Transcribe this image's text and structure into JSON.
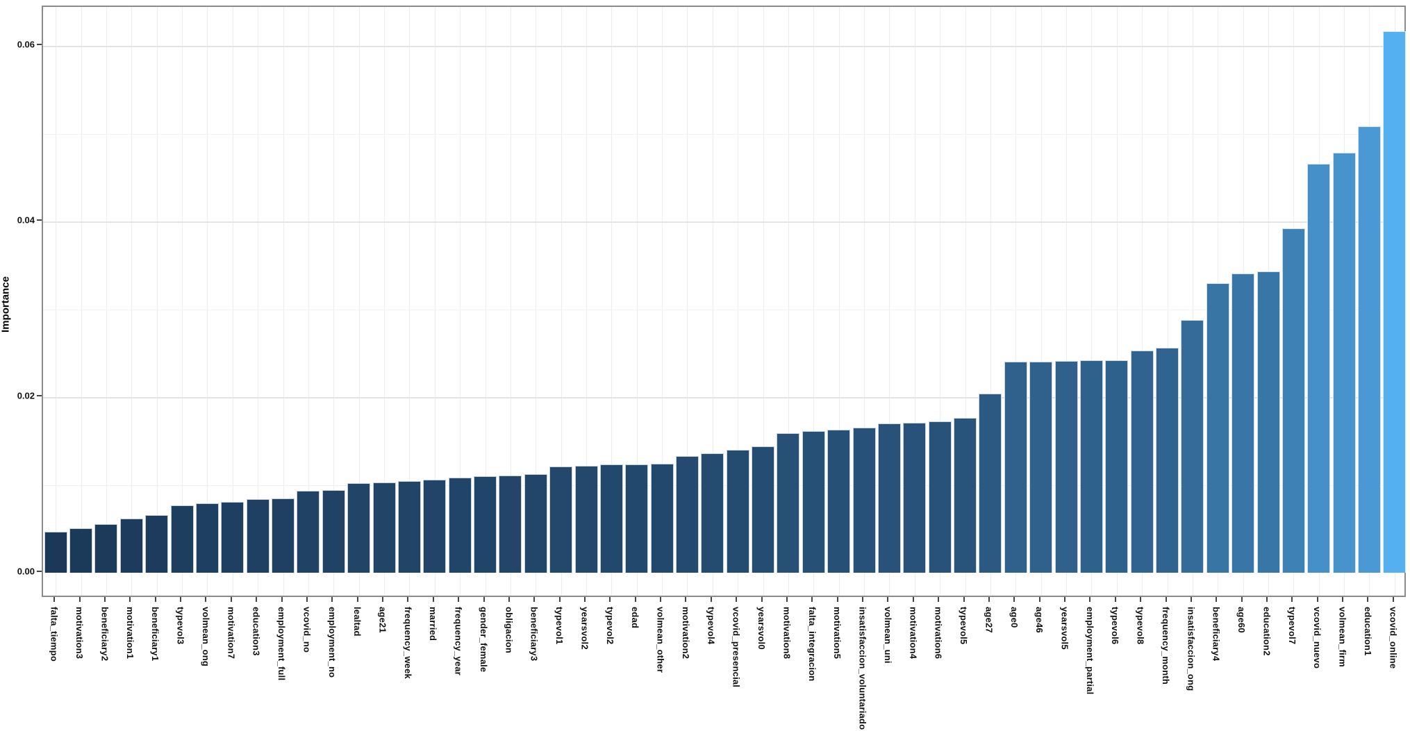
{
  "chart_data": {
    "type": "bar",
    "title": "",
    "xlabel": "",
    "ylabel": "Importance",
    "ylim": [
      0,
      0.065
    ],
    "grid": "on",
    "legend": "none",
    "ytick_values": [
      0,
      0.02,
      0.04,
      0.06
    ],
    "ytick_labels": [
      "0.00",
      "0.02",
      "0.04",
      "0.06"
    ],
    "yminor_values": [
      0.01,
      0.03,
      0.05
    ],
    "color_scale": {
      "low": "#1b3858",
      "high": "#55b0f2",
      "domain": [
        0.0047,
        0.0617
      ],
      "maps_to": "importance value"
    },
    "categories": [
      "falta_tiempo",
      "motivation3",
      "beneficiary2",
      "motivation1",
      "beneficiary1",
      "typevol3",
      "volmean_ong",
      "motivation7",
      "education3",
      "employment_full",
      "vcovid_no",
      "employment_no",
      "lealtad",
      "age21",
      "frequency_week",
      "married",
      "frequency_year",
      "gender_female",
      "obligacion",
      "beneficiary3",
      "typevol1",
      "yearsvol2",
      "typevol2",
      "edad",
      "volmean_other",
      "motivation2",
      "typevol4",
      "vcovid_presencial",
      "yearsvol0",
      "motivation8",
      "falta_integracion",
      "motivation5",
      "insatisfaccion_voluntariado",
      "volmean_uni",
      "motivation4",
      "motivation6",
      "typevol5",
      "age27",
      "age0",
      "age46",
      "yearsvol5",
      "employment_partial",
      "typevol6",
      "typevol8",
      "frequency_month",
      "insatisfaccion_ong",
      "beneficiary4",
      "age60",
      "education2",
      "typevol7",
      "vcovid_nuevo",
      "volmean_firm",
      "education1",
      "vcovid_online"
    ],
    "values": [
      0.0047,
      0.0051,
      0.0055,
      0.0062,
      0.0066,
      0.0077,
      0.0079,
      0.0081,
      0.0084,
      0.0085,
      0.0093,
      0.0094,
      0.0102,
      0.0103,
      0.0104,
      0.0106,
      0.0108,
      0.011,
      0.0111,
      0.0112,
      0.0121,
      0.0122,
      0.0123,
      0.0123,
      0.0124,
      0.0133,
      0.0136,
      0.014,
      0.0144,
      0.0159,
      0.0161,
      0.0163,
      0.0165,
      0.017,
      0.0171,
      0.0172,
      0.0176,
      0.0204,
      0.024,
      0.024,
      0.0241,
      0.0242,
      0.0242,
      0.0253,
      0.0256,
      0.0288,
      0.033,
      0.0341,
      0.0343,
      0.0392,
      0.0466,
      0.0478,
      0.0508,
      0.0617
    ]
  }
}
